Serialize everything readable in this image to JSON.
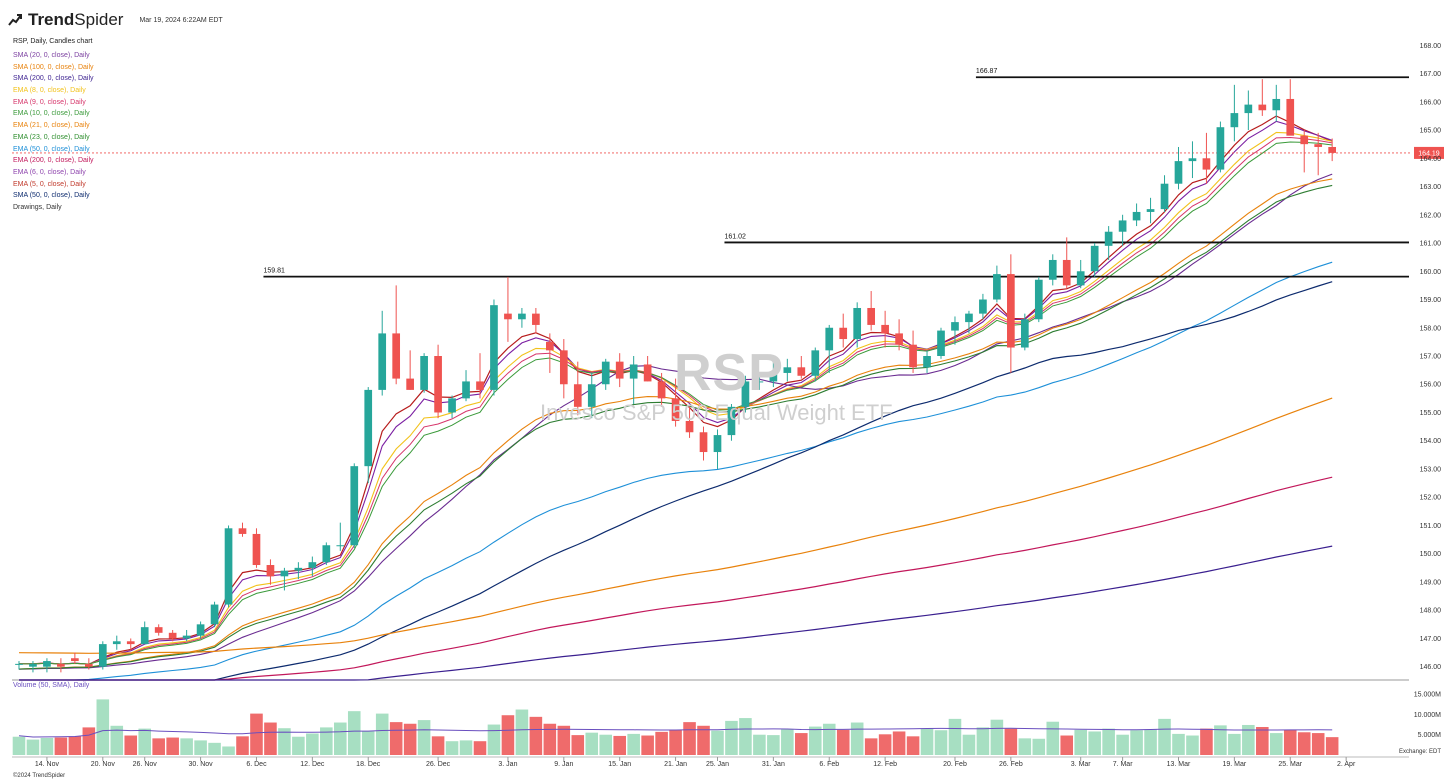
{
  "header": {
    "brand_bold": "Trend",
    "brand_light": "Spider",
    "timestamp": "Mar 19, 2024 6:22AM EDT",
    "chart_description": "RSP, Daily, Candles chart"
  },
  "watermark": {
    "symbol": "RSP",
    "name": "Invesco S&P 500 Equal Weight ETF"
  },
  "legend": [
    {
      "label": "SMA (20, 0, close), Daily",
      "color": "#7b3fa0"
    },
    {
      "label": "SMA (100, 0, close), Daily",
      "color": "#e8820c"
    },
    {
      "label": "SMA (200, 0, close), Daily",
      "color": "#3a1f8f"
    },
    {
      "label": "EMA (8, 0, close), Daily",
      "color": "#f2c21b"
    },
    {
      "label": "EMA (9, 0, close), Daily",
      "color": "#d6356a"
    },
    {
      "label": "EMA (10, 0, close), Daily",
      "color": "#3a9a3a"
    },
    {
      "label": "EMA (21, 0, close), Daily",
      "color": "#e8820c"
    },
    {
      "label": "EMA (23, 0, close), Daily",
      "color": "#2f8f2f"
    },
    {
      "label": "EMA (50, 0, close), Daily",
      "color": "#1e90d8"
    },
    {
      "label": "EMA (200, 0, close), Daily",
      "color": "#c2185b"
    },
    {
      "label": "EMA (6, 0, close), Daily",
      "color": "#8e44ad"
    },
    {
      "label": "EMA (5, 0, close), Daily",
      "color": "#c0392b"
    },
    {
      "label": "SMA (50, 0, close), Daily",
      "color": "#0d2b6e"
    },
    {
      "label": "Drawings, Daily",
      "color": "#333333"
    }
  ],
  "volume_legend": "Volume (50, SMA), Daily",
  "copyright": "©2024 TrendSpider",
  "colors": {
    "up": "#26a69a",
    "down": "#ef5350",
    "up_vol": "#a7dfc2",
    "down_vol": "#ef6b6b",
    "last_price_bg": "#ef5350"
  },
  "chart_data": {
    "type": "candlestick",
    "symbol": "RSP",
    "y_range": [
      145.6,
      168.4
    ],
    "y_ticks": [
      "168.00",
      "167.00",
      "166.00",
      "165.00",
      "164.00",
      "163.00",
      "162.00",
      "161.00",
      "160.00",
      "159.00",
      "158.00",
      "157.00",
      "156.00",
      "155.00",
      "154.00",
      "153.00",
      "152.00",
      "151.00",
      "150.00",
      "149.00",
      "148.00",
      "147.00",
      "146.00"
    ],
    "last_price": "164.19",
    "volume_range": [
      0,
      17000000
    ],
    "volume_ticks": [
      "15.000M",
      "10.000M",
      "5.000M"
    ],
    "volume_axis_note": "Exchange: EDT",
    "x_labels": [
      {
        "label": "14. Nov",
        "index": 2
      },
      {
        "label": "20. Nov",
        "index": 6
      },
      {
        "label": "26. Nov",
        "index": 9
      },
      {
        "label": "30. Nov",
        "index": 13
      },
      {
        "label": "6. Dec",
        "index": 17
      },
      {
        "label": "12. Dec",
        "index": 21
      },
      {
        "label": "18. Dec",
        "index": 25
      },
      {
        "label": "26. Dec",
        "index": 30
      },
      {
        "label": "3. Jan",
        "index": 35
      },
      {
        "label": "9. Jan",
        "index": 39
      },
      {
        "label": "15. Jan",
        "index": 43
      },
      {
        "label": "21. Jan",
        "index": 47
      },
      {
        "label": "25. Jan",
        "index": 50
      },
      {
        "label": "31. Jan",
        "index": 54
      },
      {
        "label": "6. Feb",
        "index": 58
      },
      {
        "label": "12. Feb",
        "index": 62
      },
      {
        "label": "20. Feb",
        "index": 67
      },
      {
        "label": "26. Feb",
        "index": 71
      },
      {
        "label": "3. Mar",
        "index": 76
      },
      {
        "label": "7. Mar",
        "index": 79
      },
      {
        "label": "13. Mar",
        "index": 83
      },
      {
        "label": "19. Mar",
        "index": 87
      },
      {
        "label": "25. Mar",
        "index": 91
      },
      {
        "label": "2. Apr",
        "index": 95
      }
    ],
    "candles": [
      [
        146.1,
        146.2,
        145.9,
        146.1,
        4.5
      ],
      [
        146.0,
        146.2,
        145.8,
        146.1,
        3.8
      ],
      [
        146.0,
        146.3,
        145.8,
        146.2,
        4.2
      ],
      [
        146.1,
        146.3,
        145.8,
        146.0,
        4.3
      ],
      [
        146.3,
        146.5,
        146.1,
        146.2,
        4.6
      ],
      [
        146.1,
        146.3,
        145.9,
        146.0,
        6.8
      ],
      [
        146.0,
        146.9,
        145.9,
        146.8,
        13.7
      ],
      [
        146.8,
        147.1,
        146.6,
        146.9,
        7.2
      ],
      [
        146.9,
        147.0,
        146.6,
        146.8,
        4.8
      ],
      [
        146.8,
        147.6,
        146.8,
        147.4,
        6.5
      ],
      [
        147.4,
        147.5,
        147.1,
        147.2,
        4.1
      ],
      [
        147.2,
        147.3,
        146.9,
        147.0,
        4.3
      ],
      [
        147.0,
        147.3,
        146.9,
        147.1,
        4.1
      ],
      [
        147.1,
        147.6,
        147.0,
        147.5,
        3.6
      ],
      [
        147.5,
        148.3,
        147.4,
        148.2,
        3.0
      ],
      [
        148.2,
        151.0,
        148.1,
        150.9,
        2.1
      ],
      [
        150.9,
        151.1,
        150.6,
        150.7,
        4.6
      ],
      [
        150.7,
        150.9,
        149.5,
        149.6,
        10.2
      ],
      [
        149.6,
        149.8,
        148.9,
        149.2,
        8.0
      ],
      [
        149.2,
        149.5,
        148.7,
        149.4,
        6.6
      ],
      [
        149.4,
        149.7,
        149.1,
        149.5,
        4.5
      ],
      [
        149.5,
        149.9,
        149.2,
        149.7,
        5.3
      ],
      [
        149.7,
        150.4,
        149.6,
        150.3,
        6.8
      ],
      [
        150.3,
        151.1,
        150.1,
        150.3,
        8.0
      ],
      [
        150.3,
        153.2,
        150.2,
        153.1,
        10.8
      ],
      [
        153.1,
        155.9,
        152.5,
        155.8,
        5.9
      ],
      [
        155.8,
        158.6,
        155.6,
        157.8,
        10.2
      ],
      [
        157.8,
        159.5,
        156.0,
        156.2,
        8.1
      ],
      [
        156.2,
        157.2,
        155.8,
        155.8,
        7.7
      ],
      [
        155.8,
        157.1,
        155.7,
        157.0,
        8.6
      ],
      [
        157.0,
        157.4,
        154.8,
        155.0,
        4.6
      ],
      [
        155.0,
        155.6,
        154.8,
        155.5,
        3.4
      ],
      [
        155.5,
        156.5,
        155.4,
        156.1,
        3.6
      ],
      [
        156.1,
        157.1,
        155.5,
        155.8,
        3.4
      ],
      [
        155.8,
        159.0,
        155.6,
        158.8,
        7.5
      ],
      [
        158.5,
        159.8,
        157.5,
        158.3,
        9.8
      ],
      [
        158.3,
        158.7,
        158.0,
        158.5,
        11.2
      ],
      [
        158.5,
        158.7,
        157.8,
        158.1,
        9.4
      ],
      [
        157.5,
        157.8,
        156.4,
        157.2,
        7.7
      ],
      [
        157.2,
        157.6,
        155.5,
        156.0,
        7.2
      ],
      [
        156.0,
        156.8,
        154.9,
        155.2,
        4.9
      ],
      [
        155.2,
        156.4,
        154.8,
        156.0,
        5.5
      ],
      [
        156.0,
        156.9,
        155.8,
        156.8,
        5.0
      ],
      [
        156.8,
        157.1,
        155.9,
        156.2,
        4.7
      ],
      [
        156.2,
        157.0,
        155.3,
        156.7,
        5.2
      ],
      [
        156.7,
        157.0,
        156.1,
        156.1,
        4.8
      ],
      [
        156.1,
        156.4,
        155.2,
        155.5,
        5.7
      ],
      [
        155.5,
        156.2,
        154.5,
        154.7,
        6.2
      ],
      [
        154.7,
        155.2,
        154.1,
        154.3,
        8.1
      ],
      [
        154.3,
        154.5,
        153.3,
        153.6,
        7.2
      ],
      [
        153.6,
        154.4,
        153.0,
        154.2,
        6.0
      ],
      [
        154.2,
        155.3,
        154.0,
        155.2,
        8.4
      ],
      [
        155.2,
        156.3,
        155.0,
        156.1,
        9.1
      ],
      [
        156.1,
        156.4,
        155.8,
        156.1,
        5.0
      ],
      [
        156.1,
        156.8,
        155.9,
        156.4,
        4.9
      ],
      [
        156.4,
        156.9,
        156.1,
        156.6,
        6.3
      ],
      [
        156.6,
        157.0,
        156.2,
        156.3,
        5.4
      ],
      [
        156.3,
        157.3,
        156.1,
        157.2,
        7.0
      ],
      [
        157.2,
        158.1,
        156.4,
        158.0,
        7.7
      ],
      [
        158.0,
        158.5,
        157.3,
        157.6,
        6.2
      ],
      [
        157.6,
        158.9,
        157.3,
        158.7,
        8.0
      ],
      [
        158.7,
        159.3,
        157.9,
        158.1,
        4.1
      ],
      [
        158.1,
        158.6,
        157.3,
        157.8,
        5.1
      ],
      [
        157.8,
        158.3,
        157.2,
        157.4,
        5.8
      ],
      [
        157.4,
        157.9,
        156.4,
        156.6,
        4.6
      ],
      [
        156.6,
        157.2,
        156.4,
        157.0,
        6.5
      ],
      [
        157.0,
        158.0,
        156.9,
        157.9,
        6.1
      ],
      [
        157.9,
        158.4,
        157.4,
        158.2,
        8.9
      ],
      [
        158.2,
        158.6,
        157.8,
        158.5,
        5.0
      ],
      [
        158.5,
        159.2,
        158.3,
        159.0,
        6.8
      ],
      [
        159.0,
        160.2,
        158.9,
        159.9,
        8.7
      ],
      [
        159.9,
        160.6,
        156.4,
        157.3,
        6.5
      ],
      [
        157.3,
        158.5,
        157.2,
        158.3,
        4.1
      ],
      [
        158.3,
        159.8,
        158.2,
        159.7,
        4.0
      ],
      [
        159.7,
        160.6,
        159.5,
        160.4,
        8.2
      ],
      [
        160.4,
        161.2,
        159.4,
        159.5,
        4.8
      ],
      [
        159.5,
        160.4,
        159.4,
        160.0,
        6.2
      ],
      [
        160.0,
        161.0,
        159.8,
        160.9,
        5.8
      ],
      [
        160.9,
        161.6,
        160.4,
        161.4,
        6.5
      ],
      [
        161.4,
        162.0,
        160.9,
        161.8,
        5.0
      ],
      [
        161.8,
        162.4,
        161.6,
        162.1,
        6.1
      ],
      [
        162.1,
        162.6,
        161.7,
        162.2,
        6.3
      ],
      [
        162.2,
        163.4,
        162.1,
        163.1,
        8.9
      ],
      [
        163.1,
        164.4,
        162.9,
        163.9,
        5.2
      ],
      [
        163.9,
        164.6,
        163.3,
        164.0,
        4.8
      ],
      [
        164.0,
        164.9,
        163.1,
        163.6,
        6.5
      ],
      [
        163.6,
        165.3,
        163.5,
        165.1,
        7.3
      ],
      [
        165.1,
        166.6,
        164.6,
        165.6,
        5.2
      ],
      [
        165.6,
        166.4,
        165.0,
        165.9,
        7.4
      ],
      [
        165.9,
        166.8,
        165.5,
        165.7,
        6.9
      ],
      [
        165.7,
        166.6,
        165.3,
        166.1,
        5.4
      ],
      [
        166.1,
        166.8,
        164.9,
        164.8,
        6.2
      ],
      [
        164.8,
        165.0,
        163.5,
        164.5,
        5.6
      ],
      [
        164.5,
        164.9,
        163.4,
        164.4,
        5.4
      ],
      [
        164.4,
        164.7,
        163.9,
        164.19,
        4.4
      ]
    ],
    "horizontal_levels": [
      {
        "value": 166.87,
        "label": "166.87",
        "from_index": 69
      },
      {
        "value": 161.02,
        "label": "161.02",
        "from_index": 51
      },
      {
        "value": 159.81,
        "label": "159.81",
        "from_index": 18
      }
    ]
  }
}
